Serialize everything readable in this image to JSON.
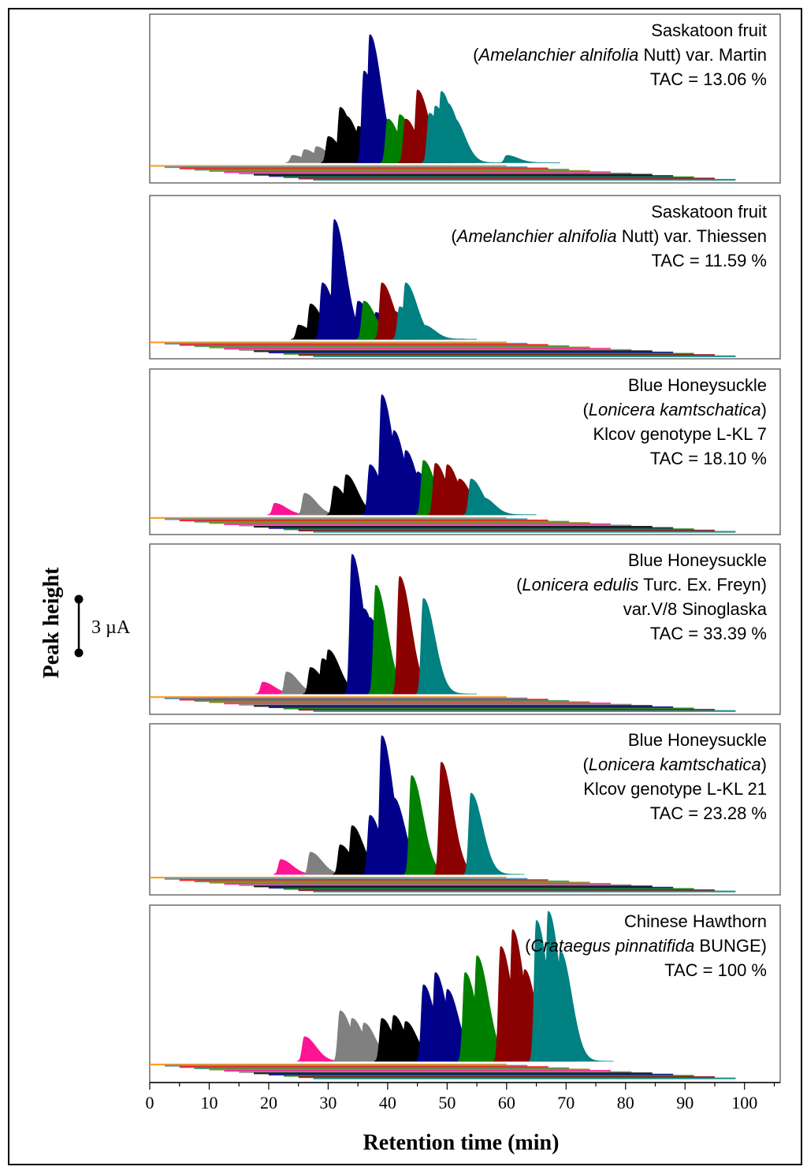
{
  "chart_data": {
    "type": "area",
    "xlabel": "Retention time (min)",
    "ylabel": "Peak height",
    "scale_bar": "3 µA",
    "xlim": [
      0,
      106
    ],
    "xticks": [
      0,
      10,
      20,
      30,
      40,
      50,
      60,
      70,
      80,
      90,
      100
    ],
    "channel_colors": [
      "#ff8c00",
      "#4682b4",
      "#ff0000",
      "#2e8b57",
      "#808000",
      "#ff1493",
      "#808080",
      "#000000",
      "#00008b",
      "#008000",
      "#8b0000",
      "#008080"
    ],
    "panels": [
      {
        "lines": [
          "Saskatoon fruit",
          "(Amelanchier alnifolia Nutt) var. Martin",
          "TAC = 13.06 %"
        ],
        "tac": 13.06,
        "series": [
          {
            "color": "#808080",
            "peaks": [
              [
                24,
                0.05
              ],
              [
                26,
                0.09
              ],
              [
                28,
                0.11
              ]
            ]
          },
          {
            "color": "#000000",
            "peaks": [
              [
                30,
                0.18
              ],
              [
                32,
                0.38
              ],
              [
                33,
                0.32
              ],
              [
                34,
                0.23
              ],
              [
                35,
                0.25
              ]
            ]
          },
          {
            "color": "#00008b",
            "peaks": [
              [
                36,
                0.63
              ],
              [
                37,
                0.88
              ],
              [
                38,
                0.45
              ],
              [
                39,
                0.28
              ],
              [
                40,
                0.2
              ]
            ]
          },
          {
            "color": "#008000",
            "peaks": [
              [
                40,
                0.3
              ],
              [
                42,
                0.33
              ]
            ]
          },
          {
            "color": "#8b0000",
            "peaks": [
              [
                43,
                0.3
              ],
              [
                45,
                0.5
              ],
              [
                46,
                0.35
              ]
            ]
          },
          {
            "color": "#008080",
            "peaks": [
              [
                47,
                0.34
              ],
              [
                48,
                0.39
              ],
              [
                49,
                0.49
              ],
              [
                50,
                0.41
              ],
              [
                51,
                0.31
              ],
              [
                60,
                0.05
              ]
            ]
          }
        ]
      },
      {
        "lines": [
          "Saskatoon fruit",
          "(Amelanchier alnifolia Nutt) var. Thiessen",
          "TAC = 11.59 %"
        ],
        "tac": 11.59,
        "series": [
          {
            "color": "#000000",
            "peaks": [
              [
                25,
                0.1
              ],
              [
                27,
                0.25
              ],
              [
                28,
                0.18
              ]
            ]
          },
          {
            "color": "#00008b",
            "peaks": [
              [
                29,
                0.4
              ],
              [
                31,
                0.85
              ],
              [
                32,
                0.3
              ],
              [
                35,
                0.27
              ],
              [
                38,
                0.19
              ],
              [
                44,
                0.1
              ]
            ]
          },
          {
            "color": "#008000",
            "peaks": [
              [
                36,
                0.27
              ]
            ]
          },
          {
            "color": "#8b0000",
            "peaks": [
              [
                39,
                0.4
              ],
              [
                41,
                0.2
              ]
            ]
          },
          {
            "color": "#008080",
            "peaks": [
              [
                42,
                0.23
              ],
              [
                43,
                0.4
              ],
              [
                46,
                0.1
              ]
            ]
          }
        ]
      },
      {
        "lines": [
          "Blue Honeysuckle",
          "(Lonicera kamtschatica)",
          "Klcov genotype L-KL 7",
          "TAC = 18.10 %"
        ],
        "tac": 18.1,
        "series": [
          {
            "color": "#ff1493",
            "peaks": [
              [
                21,
                0.08
              ]
            ]
          },
          {
            "color": "#808080",
            "peaks": [
              [
                26,
                0.15
              ]
            ]
          },
          {
            "color": "#000000",
            "peaks": [
              [
                31,
                0.2
              ],
              [
                33,
                0.28
              ]
            ]
          },
          {
            "color": "#00008b",
            "peaks": [
              [
                37,
                0.35
              ],
              [
                39,
                0.84
              ],
              [
                41,
                0.59
              ],
              [
                43,
                0.45
              ],
              [
                45,
                0.3
              ]
            ]
          },
          {
            "color": "#008000",
            "peaks": [
              [
                46,
                0.38
              ]
            ]
          },
          {
            "color": "#8b0000",
            "peaks": [
              [
                48,
                0.36
              ],
              [
                50,
                0.35
              ],
              [
                52,
                0.25
              ]
            ]
          },
          {
            "color": "#008080",
            "peaks": [
              [
                54,
                0.25
              ],
              [
                56,
                0.12
              ]
            ]
          }
        ]
      },
      {
        "lines": [
          "Blue Honeysuckle",
          "(Lonicera edulis Turc. Ex. Freyn)",
          "var.V/8 Sinoglaska",
          "TAC = 33.39 %"
        ],
        "tac": 33.39,
        "series": [
          {
            "color": "#ff1493",
            "peaks": [
              [
                19,
                0.08
              ]
            ]
          },
          {
            "color": "#808080",
            "peaks": [
              [
                23,
                0.15
              ]
            ]
          },
          {
            "color": "#000000",
            "peaks": [
              [
                27,
                0.18
              ],
              [
                29,
                0.24
              ],
              [
                30,
                0.3
              ]
            ]
          },
          {
            "color": "#00008b",
            "peaks": [
              [
                34,
                0.95
              ],
              [
                36,
                0.58
              ],
              [
                37,
                0.52
              ]
            ]
          },
          {
            "color": "#008000",
            "peaks": [
              [
                38,
                0.74
              ]
            ]
          },
          {
            "color": "#8b0000",
            "peaks": [
              [
                42,
                0.8
              ]
            ]
          },
          {
            "color": "#008080",
            "peaks": [
              [
                46,
                0.65
              ]
            ]
          }
        ]
      },
      {
        "lines": [
          "Blue Honeysuckle",
          "(Lonicera kamtschatica)",
          "Klcov genotype L-KL 21",
          "TAC = 23.28 %"
        ],
        "tac": 23.28,
        "series": [
          {
            "color": "#ff1493",
            "peaks": [
              [
                22,
                0.1
              ]
            ]
          },
          {
            "color": "#808080",
            "peaks": [
              [
                27,
                0.15
              ]
            ]
          },
          {
            "color": "#000000",
            "peaks": [
              [
                32,
                0.2
              ],
              [
                34,
                0.33
              ]
            ]
          },
          {
            "color": "#00008b",
            "peaks": [
              [
                37,
                0.4
              ],
              [
                39,
                0.94
              ],
              [
                41,
                0.52
              ]
            ]
          },
          {
            "color": "#008000",
            "peaks": [
              [
                44,
                0.67
              ]
            ]
          },
          {
            "color": "#8b0000",
            "peaks": [
              [
                49,
                0.76
              ]
            ]
          },
          {
            "color": "#008080",
            "peaks": [
              [
                54,
                0.55
              ]
            ]
          }
        ]
      },
      {
        "lines": [
          "Chinese Hawthorn",
          "(Crataegus pinnatifida BUNGE)",
          "TAC = 100 %"
        ],
        "tac": 100,
        "series": [
          {
            "color": "#ff1493",
            "peaks": [
              [
                26,
                0.16
              ]
            ]
          },
          {
            "color": "#808080",
            "peaks": [
              [
                32,
                0.33
              ],
              [
                34,
                0.28
              ],
              [
                36,
                0.25
              ]
            ]
          },
          {
            "color": "#000000",
            "peaks": [
              [
                39,
                0.28
              ],
              [
                41,
                0.3
              ],
              [
                43,
                0.26
              ]
            ]
          },
          {
            "color": "#00008b",
            "peaks": [
              [
                46,
                0.5
              ],
              [
                48,
                0.58
              ],
              [
                50,
                0.47
              ]
            ]
          },
          {
            "color": "#008000",
            "peaks": [
              [
                53,
                0.58
              ],
              [
                55,
                0.69
              ]
            ]
          },
          {
            "color": "#8b0000",
            "peaks": [
              [
                59,
                0.75
              ],
              [
                61,
                0.86
              ],
              [
                63,
                0.6
              ]
            ]
          },
          {
            "color": "#008080",
            "peaks": [
              [
                65,
                0.92
              ],
              [
                67,
                0.98
              ],
              [
                69,
                0.72
              ]
            ]
          }
        ]
      }
    ]
  }
}
